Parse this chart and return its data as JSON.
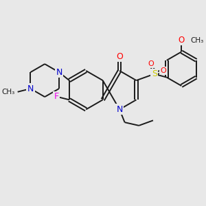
{
  "background_color": "#e8e8e8",
  "atom_colors": {
    "N": "#0000cc",
    "O": "#ff0000",
    "F": "#ee00ee",
    "S": "#cccc00",
    "C": "#1a1a1a"
  },
  "figsize": [
    3.0,
    3.0
  ],
  "dpi": 100
}
